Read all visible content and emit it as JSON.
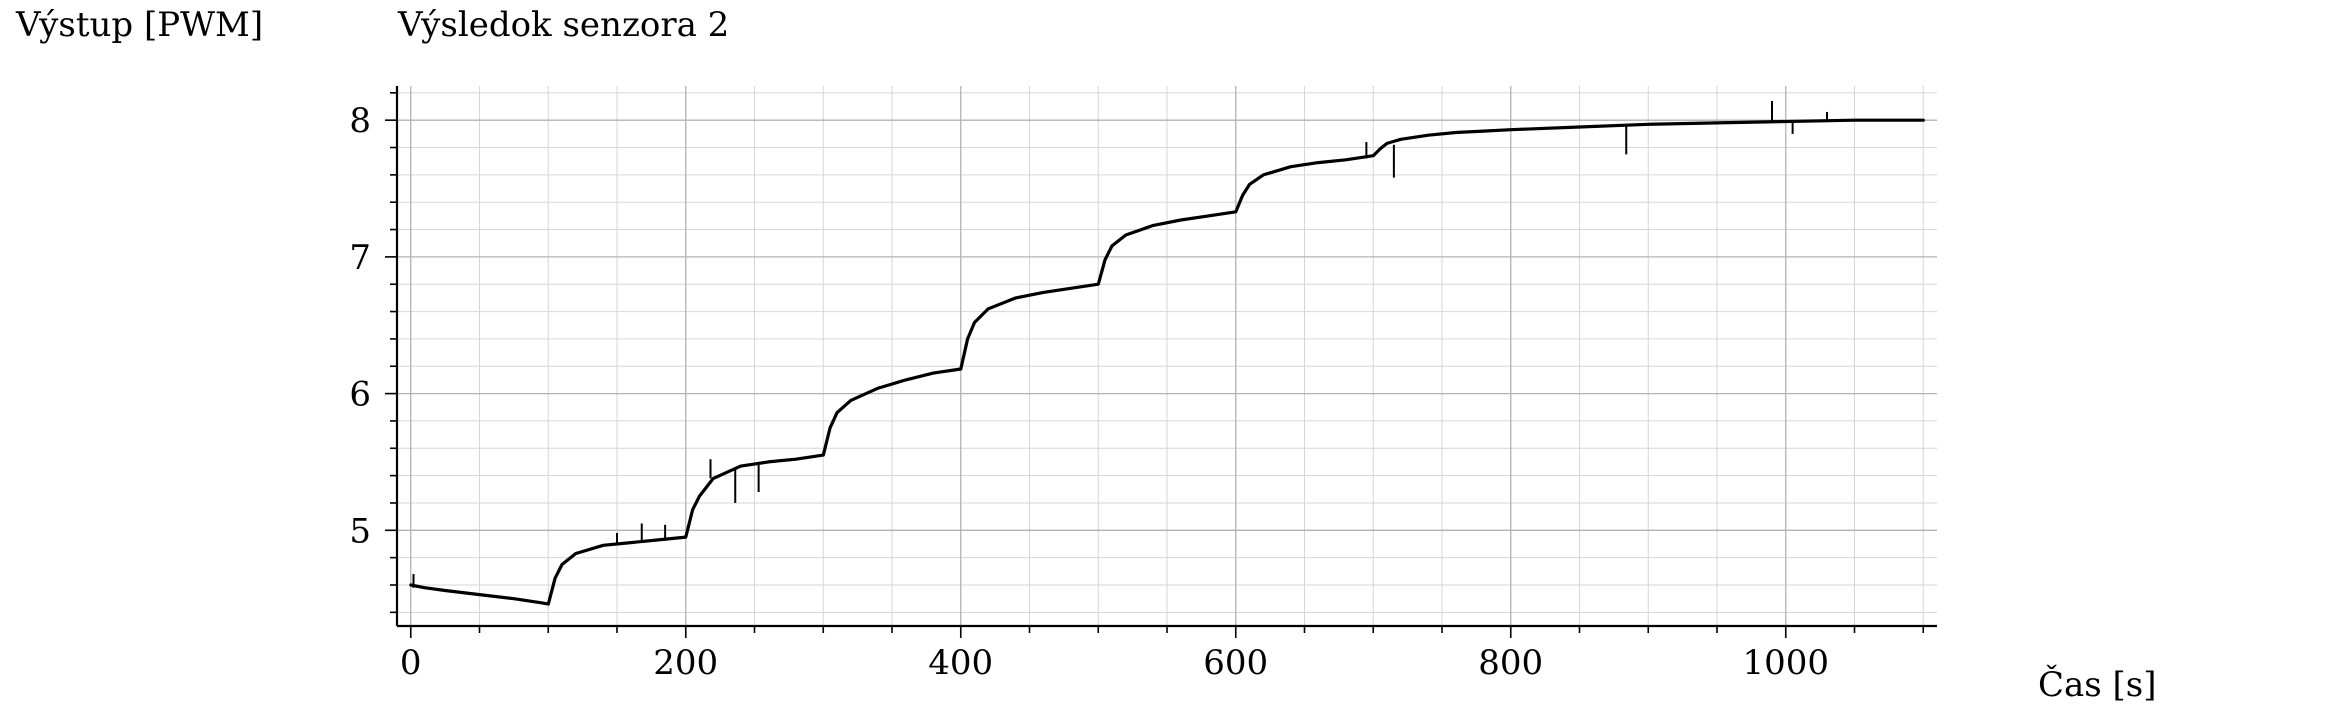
{
  "chart_data": {
    "type": "line",
    "title": "Výsledok senzora 2",
    "ylabel": "Výstup [PWM]",
    "xlabel": "Čas [s]",
    "xlim": [
      -10,
      1110
    ],
    "ylim": [
      4.3,
      8.25
    ],
    "x_ticks": [
      0,
      200,
      400,
      600,
      800,
      1000
    ],
    "y_ticks": [
      5,
      6,
      7,
      8
    ],
    "grid": true,
    "legend": "none",
    "line_color": "#000000",
    "series": [
      {
        "x": [
          0,
          10,
          25,
          50,
          75,
          95,
          100,
          105,
          110,
          120,
          140,
          160,
          180,
          200,
          205,
          210,
          220,
          240,
          260,
          280,
          300,
          305,
          310,
          320,
          340,
          360,
          380,
          400,
          405,
          410,
          420,
          440,
          460,
          480,
          500,
          505,
          510,
          520,
          540,
          560,
          580,
          600,
          605,
          610,
          620,
          640,
          660,
          680,
          700,
          705,
          710,
          720,
          740,
          760,
          780,
          800,
          850,
          900,
          950,
          1000,
          1050,
          1100
        ],
        "y": [
          4.6,
          4.58,
          4.56,
          4.53,
          4.5,
          4.47,
          4.46,
          4.65,
          4.75,
          4.83,
          4.89,
          4.91,
          4.93,
          4.95,
          5.15,
          5.25,
          5.38,
          5.47,
          5.5,
          5.52,
          5.55,
          5.75,
          5.86,
          5.95,
          6.04,
          6.1,
          6.15,
          6.18,
          6.4,
          6.52,
          6.62,
          6.7,
          6.74,
          6.77,
          6.8,
          6.98,
          7.08,
          7.16,
          7.23,
          7.27,
          7.3,
          7.33,
          7.45,
          7.53,
          7.6,
          7.66,
          7.69,
          7.71,
          7.74,
          7.79,
          7.83,
          7.86,
          7.89,
          7.91,
          7.92,
          7.93,
          7.95,
          7.97,
          7.98,
          7.99,
          8.0,
          8.0
        ]
      }
    ],
    "spikes": [
      {
        "x": 2,
        "y0": 4.58,
        "y1": 4.68
      },
      {
        "x": 150,
        "y0": 4.9,
        "y1": 4.98
      },
      {
        "x": 168,
        "y0": 4.92,
        "y1": 5.05
      },
      {
        "x": 185,
        "y0": 4.93,
        "y1": 5.04
      },
      {
        "x": 218,
        "y0": 5.38,
        "y1": 5.52
      },
      {
        "x": 236,
        "y0": 5.2,
        "y1": 5.46
      },
      {
        "x": 253,
        "y0": 5.28,
        "y1": 5.5
      },
      {
        "x": 695,
        "y0": 7.72,
        "y1": 7.84
      },
      {
        "x": 715,
        "y0": 7.58,
        "y1": 7.82
      },
      {
        "x": 884,
        "y0": 7.75,
        "y1": 7.96
      },
      {
        "x": 990,
        "y0": 7.98,
        "y1": 8.14
      },
      {
        "x": 1005,
        "y0": 7.9,
        "y1": 8.0
      },
      {
        "x": 1030,
        "y0": 7.99,
        "y1": 8.06
      }
    ]
  }
}
